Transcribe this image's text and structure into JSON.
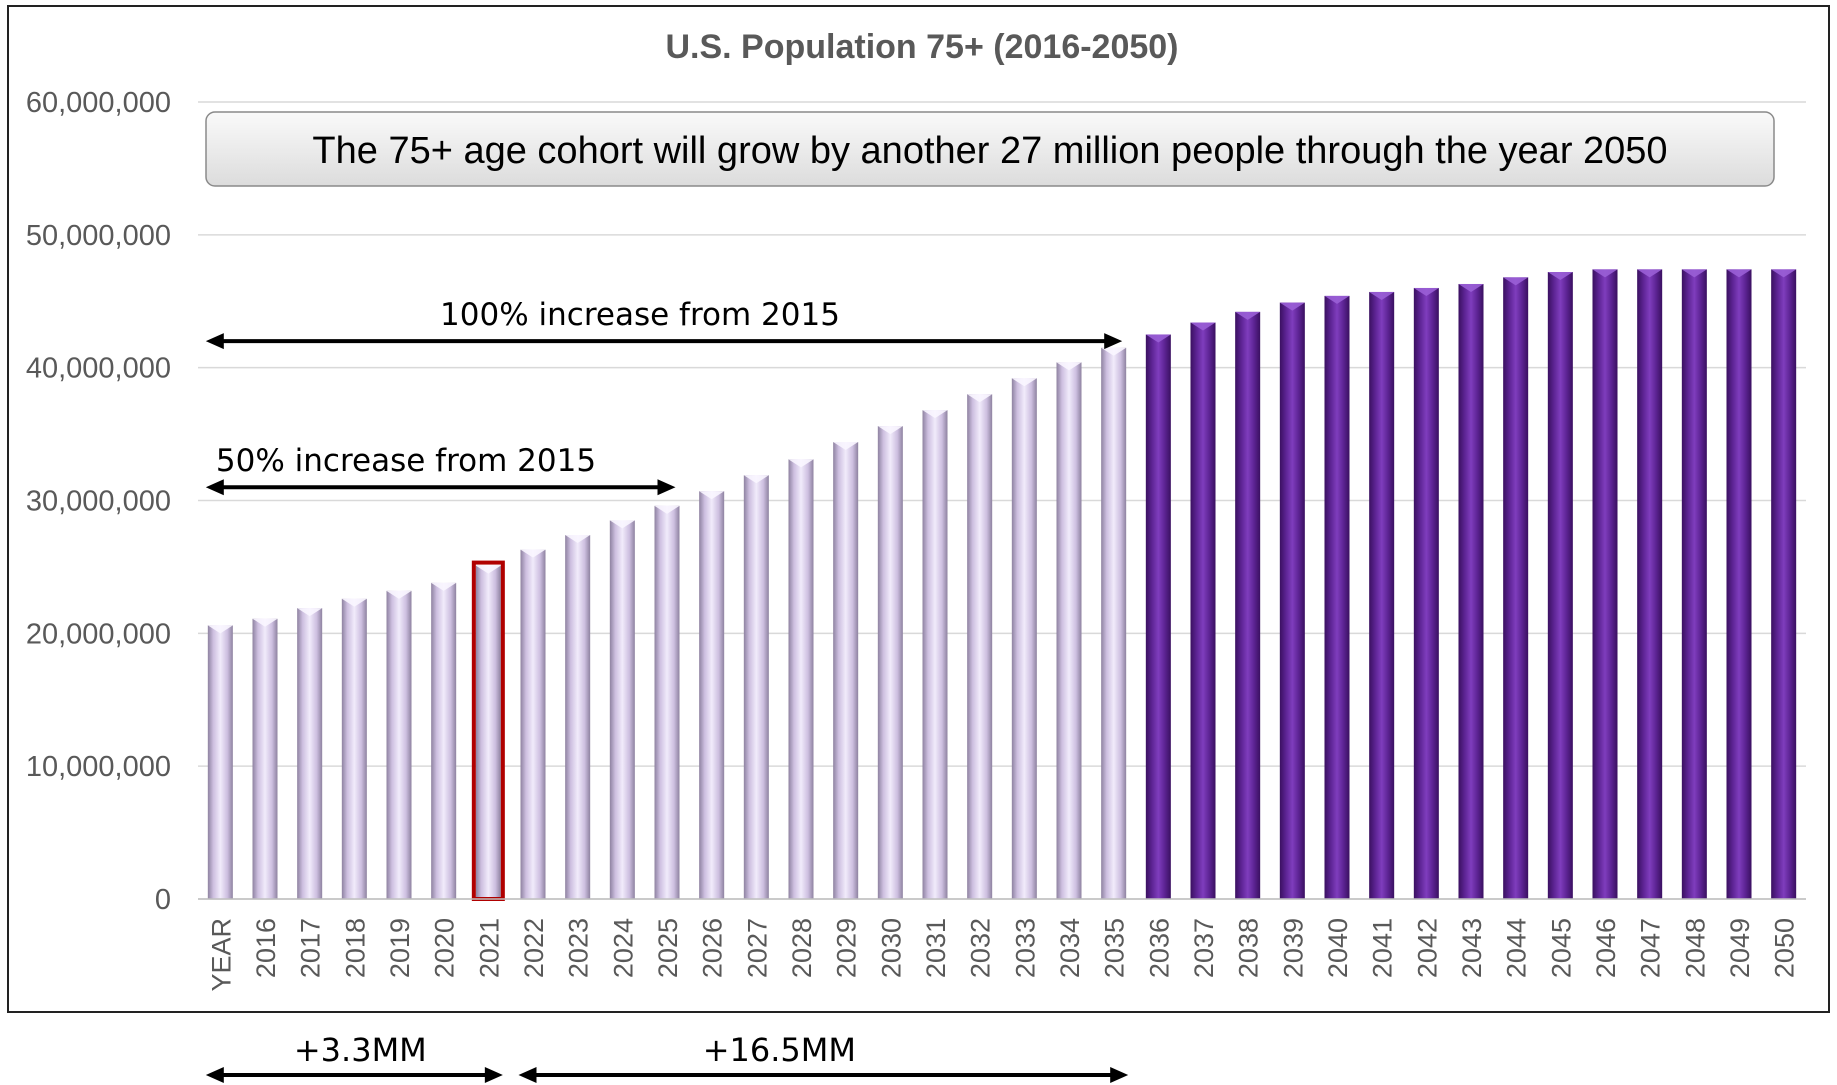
{
  "chart_data": {
    "type": "bar",
    "title": "U.S. Population 75+ (2016-2050)",
    "xlabel": "",
    "ylabel": "",
    "ylim": [
      0,
      60000000
    ],
    "yticks": [
      0,
      10000000,
      20000000,
      30000000,
      40000000,
      50000000,
      60000000
    ],
    "ytick_labels": [
      "0",
      "10,000,000",
      "20,000,000",
      "30,000,000",
      "40,000,000",
      "50,000,000",
      "60,000,000"
    ],
    "grid": true,
    "categories": [
      "YEAR",
      "2016",
      "2017",
      "2018",
      "2019",
      "2020",
      "2021",
      "2022",
      "2023",
      "2024",
      "2025",
      "2026",
      "2027",
      "2028",
      "2029",
      "2030",
      "2031",
      "2032",
      "2033",
      "2034",
      "2035",
      "2036",
      "2037",
      "2038",
      "2039",
      "2040",
      "2041",
      "2042",
      "2043",
      "2044",
      "2045",
      "2046",
      "2047",
      "2048",
      "2049",
      "2050"
    ],
    "values": [
      20600000,
      21100000,
      21900000,
      22600000,
      23200000,
      23800000,
      25100000,
      26300000,
      27400000,
      28500000,
      29600000,
      30700000,
      31900000,
      33100000,
      34400000,
      35600000,
      36800000,
      38000000,
      39200000,
      40400000,
      41500000,
      42500000,
      43400000,
      44200000,
      44900000,
      45400000,
      45700000,
      46000000,
      46300000,
      46800000,
      47200000,
      47400000,
      47400000,
      47400000,
      47400000,
      47400000
    ],
    "projected_from": "2036",
    "highlighted_category": "2021",
    "colors": {
      "historical_bar": "#d4c4ea",
      "projected_bar": "#6a2aa0",
      "highlight_outline": "#b00000",
      "grid": "#d9d9d9",
      "axis_text": "#595959",
      "title_text": "#595959"
    },
    "callout": "The 75+ age cohort will grow by another 27 million people through the year 2050",
    "annotations": [
      {
        "label": "100% increase from 2015",
        "from": "YEAR",
        "to": "2035",
        "level": 42000000
      },
      {
        "label": "50% increase from 2015",
        "from": "YEAR",
        "to": "2025",
        "level": 31000000
      }
    ],
    "below_annotations": [
      {
        "label": "+3.3MM",
        "from": "YEAR",
        "to": "2021"
      },
      {
        "label": "+16.5MM",
        "from": "2022",
        "to": "2035"
      }
    ]
  }
}
